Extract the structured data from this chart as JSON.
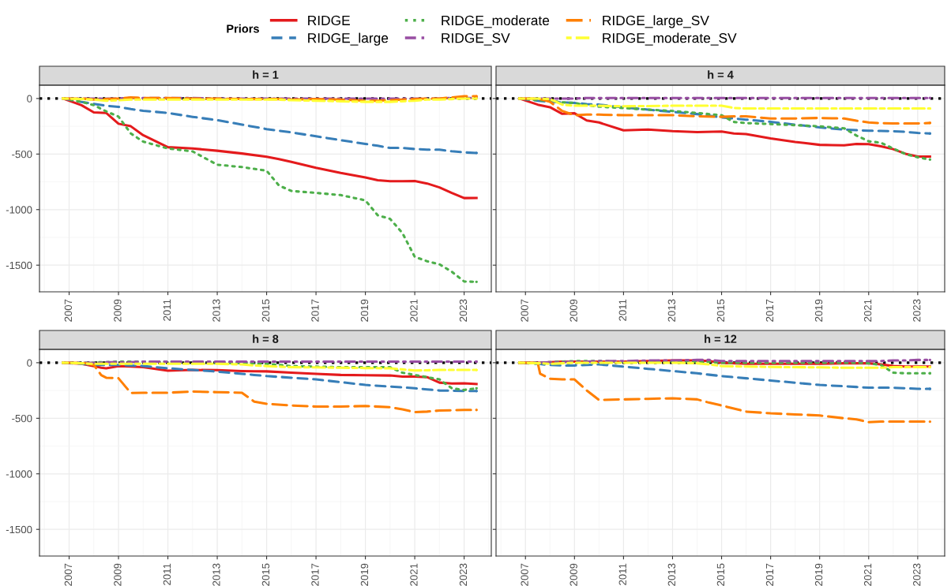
{
  "chart_data": [
    {
      "type": "line",
      "title": "h = 1",
      "legend": "top",
      "legend_title": "Priors",
      "grid": true,
      "x": [
        2006.75,
        2007.5,
        2008,
        2008.5,
        2009,
        2009.5,
        2010,
        2011,
        2012,
        2013,
        2014,
        2015,
        2015.5,
        2016,
        2017,
        2018,
        2019,
        2019.5,
        2020,
        2020.5,
        2021,
        2021.5,
        2022,
        2022.5,
        2023,
        2023.5
      ],
      "xlim": [
        2005.8,
        2024.1
      ],
      "xticks": [
        2007,
        2009,
        2011,
        2013,
        2015,
        2017,
        2019,
        2021,
        2023
      ],
      "ylim": [
        -1740,
        120
      ],
      "yticks": [
        -1500,
        -1000,
        -500,
        0
      ],
      "ref_lines": [
        {
          "axis": "y",
          "value": 0,
          "color": "#000000",
          "line_style": "dotted"
        }
      ],
      "series": [
        {
          "name": "RIDGE",
          "color": "#e41a1c",
          "line_style": "solid",
          "values": [
            0,
            -60,
            -125,
            -130,
            -227,
            -250,
            -330,
            -438,
            -450,
            -470,
            -495,
            -524,
            -545,
            -570,
            -623,
            -670,
            -711,
            -735,
            -745,
            -745,
            -743,
            -765,
            -800,
            -850,
            -896,
            -895
          ]
        },
        {
          "name": "RIDGE_large",
          "color": "#377eb8",
          "line_style": "dashed",
          "values": [
            0,
            -30,
            -48,
            -65,
            -75,
            -95,
            -110,
            -130,
            -165,
            -195,
            -235,
            -275,
            -290,
            -305,
            -340,
            -375,
            -409,
            -425,
            -445,
            -445,
            -455,
            -460,
            -460,
            -475,
            -485,
            -490
          ]
        },
        {
          "name": "RIDGE_moderate",
          "color": "#4daf4a",
          "line_style": "dotted",
          "values": [
            0,
            -30,
            -60,
            -115,
            -163,
            -315,
            -388,
            -450,
            -476,
            -596,
            -617,
            -650,
            -783,
            -832,
            -850,
            -869,
            -917,
            -1051,
            -1083,
            -1211,
            -1425,
            -1465,
            -1492,
            -1559,
            -1647,
            -1650
          ]
        },
        {
          "name": "RIDGE_SV",
          "color": "#984ea3",
          "line_style": "dashdot",
          "values": [
            0,
            0,
            0,
            0,
            0,
            5,
            5,
            5,
            5,
            0,
            0,
            0,
            0,
            0,
            0,
            0,
            0,
            0,
            0,
            0,
            0,
            0,
            0,
            5,
            5,
            5
          ]
        },
        {
          "name": "RIDGE_large_SV",
          "color": "#ff7f00",
          "line_style": "longdash",
          "values": [
            0,
            0,
            -10,
            -5,
            0,
            10,
            5,
            5,
            0,
            0,
            -5,
            -5,
            -5,
            -10,
            -5,
            -10,
            -20,
            -20,
            -15,
            -10,
            -5,
            0,
            0,
            10,
            20,
            20
          ]
        },
        {
          "name": "RIDGE_moderate_SV",
          "color": "#ffff33",
          "line_style": "twodash",
          "values": [
            0,
            -5,
            -10,
            -20,
            -15,
            -10,
            -10,
            -10,
            -10,
            -10,
            -10,
            -10,
            -10,
            -15,
            -20,
            -25,
            -30,
            -30,
            -30,
            -25,
            -20,
            -10,
            -10,
            -5,
            0,
            0
          ]
        }
      ]
    },
    {
      "type": "line",
      "title": "h = 4",
      "grid": true,
      "tick_labels": "x",
      "x": [
        2006.75,
        2007.5,
        2008,
        2008.5,
        2009,
        2009.5,
        2010,
        2011,
        2012,
        2013,
        2014,
        2015,
        2015.5,
        2016,
        2017,
        2018,
        2019,
        2019.5,
        2020,
        2020.5,
        2021,
        2021.5,
        2022,
        2022.5,
        2023,
        2023.5
      ],
      "xlim": [
        2005.8,
        2024.1
      ],
      "xticks": [
        2007,
        2009,
        2011,
        2013,
        2015,
        2017,
        2019,
        2021,
        2023
      ],
      "ylim": [
        -1740,
        120
      ],
      "yticks": [
        -1500,
        -1000,
        -500,
        0
      ],
      "ref_lines": [
        {
          "axis": "y",
          "value": 0,
          "color": "#000000",
          "line_style": "dotted"
        }
      ],
      "series": [
        {
          "color": "#e41a1c",
          "line_style": "solid",
          "values": [
            0,
            -55,
            -78,
            -138,
            -133,
            -198,
            -216,
            -286,
            -279,
            -294,
            -302,
            -297,
            -315,
            -320,
            -359,
            -391,
            -417,
            -420,
            -422,
            -409,
            -411,
            -430,
            -456,
            -497,
            -523,
            -522
          ]
        },
        {
          "color": "#377eb8",
          "line_style": "dashed",
          "values": [
            0,
            -20,
            -30,
            -35,
            -40,
            -50,
            -55,
            -80,
            -100,
            -120,
            -140,
            -170,
            -180,
            -190,
            -210,
            -235,
            -260,
            -270,
            -280,
            -285,
            -290,
            -292,
            -295,
            -300,
            -310,
            -315
          ]
        },
        {
          "color": "#4daf4a",
          "line_style": "dotted",
          "values": [
            0,
            -15,
            -20,
            -34,
            -40,
            -60,
            -73,
            -86,
            -100,
            -112,
            -130,
            -151,
            -211,
            -221,
            -230,
            -240,
            -250,
            -260,
            -268,
            -333,
            -385,
            -398,
            -450,
            -500,
            -529,
            -549
          ]
        },
        {
          "color": "#984ea3",
          "line_style": "dashdot",
          "values": [
            0,
            0,
            0,
            0,
            0,
            5,
            5,
            5,
            5,
            5,
            5,
            5,
            5,
            5,
            5,
            5,
            5,
            5,
            5,
            5,
            5,
            5,
            5,
            5,
            5,
            5
          ]
        },
        {
          "color": "#ff7f00",
          "line_style": "longdash",
          "values": [
            0,
            0,
            -30,
            -112,
            -151,
            -145,
            -145,
            -150,
            -150,
            -150,
            -160,
            -165,
            -160,
            -160,
            -180,
            -180,
            -175,
            -178,
            -180,
            -200,
            -215,
            -222,
            -225,
            -225,
            -225,
            -220
          ]
        },
        {
          "color": "#ffff33",
          "line_style": "twodash",
          "values": [
            0,
            0,
            -5,
            -55,
            -65,
            -65,
            -65,
            -70,
            -68,
            -65,
            -65,
            -65,
            -85,
            -90,
            -90,
            -90,
            -90,
            -90,
            -90,
            -90,
            -90,
            -90,
            -90,
            -90,
            -90,
            -90
          ]
        }
      ]
    },
    {
      "type": "line",
      "title": "h = 8",
      "grid": true,
      "x": [
        2006.75,
        2007.5,
        2008,
        2008.3,
        2008.5,
        2009,
        2009.5,
        2010,
        2011,
        2012,
        2013,
        2014,
        2014.5,
        2015,
        2016,
        2017,
        2018,
        2019,
        2020,
        2020.5,
        2021,
        2021.5,
        2022,
        2022.5,
        2023,
        2023.5
      ],
      "xlim": [
        2005.8,
        2024.1
      ],
      "xticks": [
        2007,
        2009,
        2011,
        2013,
        2015,
        2017,
        2019,
        2021,
        2023
      ],
      "ylim": [
        -1740,
        120
      ],
      "yticks": [
        -1500,
        -1000,
        -500,
        0
      ],
      "ref_lines": [
        {
          "axis": "y",
          "value": 0,
          "color": "#000000",
          "line_style": "dotted"
        }
      ],
      "series": [
        {
          "color": "#e41a1c",
          "line_style": "solid",
          "values": [
            0,
            -10,
            -30,
            -45,
            -51,
            -30,
            -35,
            -40,
            -72,
            -65,
            -67,
            -75,
            -77,
            -78,
            -90,
            -100,
            -110,
            -112,
            -115,
            -125,
            -125,
            -130,
            -179,
            -187,
            -185,
            -192
          ]
        },
        {
          "color": "#377eb8",
          "line_style": "dashed",
          "values": [
            0,
            -10,
            -20,
            -20,
            -20,
            -20,
            -25,
            -30,
            -50,
            -65,
            -80,
            -100,
            -110,
            -120,
            -135,
            -150,
            -175,
            -200,
            -215,
            -222,
            -230,
            -240,
            -250,
            -252,
            -255,
            -255
          ]
        },
        {
          "color": "#4daf4a",
          "line_style": "dotted",
          "values": [
            0,
            0,
            0,
            5,
            5,
            10,
            10,
            10,
            10,
            5,
            0,
            0,
            -5,
            -10,
            -30,
            -35,
            -40,
            -40,
            -40,
            -90,
            -110,
            -130,
            -150,
            -230,
            -245,
            -230
          ]
        },
        {
          "color": "#984ea3",
          "line_style": "dashdot",
          "values": [
            0,
            0,
            0,
            0,
            5,
            5,
            5,
            10,
            10,
            10,
            10,
            10,
            10,
            10,
            10,
            10,
            10,
            10,
            10,
            10,
            10,
            10,
            10,
            10,
            10,
            10
          ]
        },
        {
          "color": "#ff7f00",
          "line_style": "longdash",
          "values": [
            0,
            0,
            -20,
            -112,
            -135,
            -140,
            -273,
            -270,
            -270,
            -260,
            -265,
            -270,
            -350,
            -370,
            -385,
            -395,
            -395,
            -390,
            -400,
            -420,
            -445,
            -440,
            -430,
            -428,
            -425,
            -425
          ]
        },
        {
          "color": "#ffff33",
          "line_style": "twodash",
          "values": [
            0,
            -5,
            -10,
            -10,
            -10,
            -10,
            -10,
            -10,
            -10,
            -10,
            -10,
            -15,
            -25,
            -30,
            -40,
            -42,
            -45,
            -48,
            -50,
            -60,
            -70,
            -68,
            -65,
            -65,
            -65,
            -65
          ]
        }
      ]
    },
    {
      "type": "line",
      "title": "h = 12",
      "grid": true,
      "tick_labels": "x",
      "x": [
        2006.75,
        2007.5,
        2007.6,
        2008,
        2008.5,
        2009,
        2009.5,
        2010,
        2011,
        2012,
        2013,
        2014,
        2014.5,
        2015,
        2016,
        2017,
        2018,
        2019,
        2020,
        2020.5,
        2021,
        2021.5,
        2022,
        2022.5,
        2023,
        2023.5
      ],
      "xlim": [
        2005.8,
        2024.1
      ],
      "xticks": [
        2007,
        2009,
        2011,
        2013,
        2015,
        2017,
        2019,
        2021,
        2023
      ],
      "ylim": [
        -1740,
        120
      ],
      "yticks": [
        -1500,
        -1000,
        -500,
        0
      ],
      "ref_lines": [
        {
          "axis": "y",
          "value": 0,
          "color": "#000000",
          "line_style": "dotted"
        }
      ],
      "series": [
        {
          "color": "#e41a1c",
          "line_style": "solid",
          "values": [
            0,
            0,
            0,
            5,
            10,
            10,
            10,
            10,
            10,
            15,
            20,
            20,
            15,
            0,
            -10,
            -10,
            -10,
            -10,
            -5,
            -5,
            -5,
            -15,
            -30,
            -35,
            -35,
            -35
          ]
        },
        {
          "color": "#377eb8",
          "line_style": "dashed",
          "values": [
            0,
            -10,
            -12,
            -20,
            -25,
            -25,
            -20,
            -15,
            -35,
            -55,
            -75,
            -95,
            -108,
            -120,
            -140,
            -160,
            -180,
            -200,
            -212,
            -218,
            -225,
            -225,
            -225,
            -230,
            -235,
            -235
          ]
        },
        {
          "color": "#4daf4a",
          "line_style": "dotted",
          "values": [
            0,
            0,
            0,
            5,
            10,
            15,
            15,
            15,
            10,
            10,
            10,
            10,
            10,
            0,
            0,
            0,
            0,
            0,
            0,
            0,
            -5,
            -20,
            -90,
            -95,
            -95,
            -95
          ]
        },
        {
          "color": "#984ea3",
          "line_style": "dashdot",
          "values": [
            0,
            0,
            0,
            5,
            5,
            10,
            10,
            15,
            15,
            20,
            20,
            25,
            25,
            15,
            15,
            15,
            15,
            15,
            15,
            15,
            15,
            15,
            20,
            20,
            25,
            25
          ]
        },
        {
          "color": "#ff7f00",
          "line_style": "longdash",
          "values": [
            0,
            0,
            -100,
            -144,
            -150,
            -150,
            -250,
            -335,
            -330,
            -325,
            -320,
            -330,
            -360,
            -385,
            -440,
            -455,
            -465,
            -475,
            -500,
            -510,
            -535,
            -530,
            -530,
            -530,
            -530,
            -530
          ]
        },
        {
          "color": "#ffff33",
          "line_style": "twodash",
          "values": [
            0,
            -5,
            -5,
            -10,
            -5,
            0,
            0,
            0,
            0,
            0,
            0,
            -5,
            -15,
            -30,
            -35,
            -38,
            -40,
            -42,
            -45,
            -45,
            -45,
            -45,
            -40,
            -40,
            -40,
            -40
          ]
        }
      ]
    }
  ]
}
